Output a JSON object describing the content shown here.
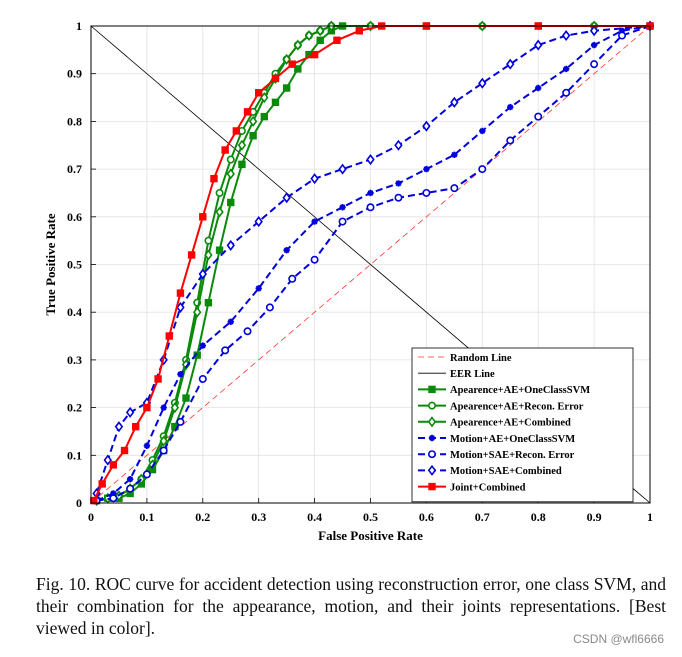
{
  "chart_data": {
    "type": "line",
    "title": "",
    "xlabel": "False Positive Rate",
    "ylabel": "True Positive Rate",
    "xlim": [
      0,
      1
    ],
    "ylim": [
      0,
      1
    ],
    "grid": true,
    "legend_position": "bottom-right",
    "x_ticks": [
      {
        "value": 0,
        "label": "0"
      },
      {
        "value": 0.1,
        "label": "0.1"
      },
      {
        "value": 0.2,
        "label": "0.2"
      },
      {
        "value": 0.3,
        "label": "0.3"
      },
      {
        "value": 0.4,
        "label": "0.4"
      },
      {
        "value": 0.5,
        "label": "0.5"
      },
      {
        "value": 0.6,
        "label": "0.6"
      },
      {
        "value": 0.7,
        "label": "0.7"
      },
      {
        "value": 0.8,
        "label": "0.8"
      },
      {
        "value": 0.9,
        "label": "0.9"
      },
      {
        "value": 1,
        "label": "1"
      }
    ],
    "y_ticks": [
      {
        "value": 0,
        "label": "0"
      },
      {
        "value": 0.1,
        "label": "0.1"
      },
      {
        "value": 0.2,
        "label": "0.2"
      },
      {
        "value": 0.3,
        "label": "0.3"
      },
      {
        "value": 0.4,
        "label": "0.4"
      },
      {
        "value": 0.5,
        "label": "0.5"
      },
      {
        "value": 0.6,
        "label": "0.6"
      },
      {
        "value": 0.7,
        "label": "0.7"
      },
      {
        "value": 0.8,
        "label": "0.8"
      },
      {
        "value": 0.9,
        "label": "0.9"
      },
      {
        "value": 1,
        "label": "1"
      }
    ],
    "series": [
      {
        "name": "Random Line",
        "color": "#ff3333",
        "dash": "6,4",
        "marker": "none",
        "width": 0.8,
        "points": [
          [
            0,
            0
          ],
          [
            1,
            1
          ]
        ]
      },
      {
        "name": "EER Line",
        "color": "#000000",
        "dash": "",
        "marker": "none",
        "width": 0.8,
        "points": [
          [
            0,
            1
          ],
          [
            1,
            0
          ]
        ]
      },
      {
        "name": "Apearence+AE+OneClassSVM",
        "color": "#0a8a0a",
        "dash": "",
        "marker": "square",
        "width": 2,
        "points": [
          [
            0.01,
            0.005
          ],
          [
            0.03,
            0.01
          ],
          [
            0.05,
            0.01
          ],
          [
            0.07,
            0.02
          ],
          [
            0.09,
            0.04
          ],
          [
            0.11,
            0.07
          ],
          [
            0.13,
            0.11
          ],
          [
            0.15,
            0.16
          ],
          [
            0.17,
            0.22
          ],
          [
            0.19,
            0.31
          ],
          [
            0.21,
            0.42
          ],
          [
            0.23,
            0.53
          ],
          [
            0.25,
            0.63
          ],
          [
            0.27,
            0.71
          ],
          [
            0.29,
            0.77
          ],
          [
            0.31,
            0.81
          ],
          [
            0.33,
            0.84
          ],
          [
            0.35,
            0.87
          ],
          [
            0.37,
            0.91
          ],
          [
            0.39,
            0.94
          ],
          [
            0.41,
            0.97
          ],
          [
            0.43,
            0.99
          ],
          [
            0.45,
            1
          ],
          [
            0.5,
            1
          ],
          [
            0.6,
            1
          ],
          [
            0.7,
            1
          ],
          [
            0.8,
            1
          ],
          [
            0.9,
            1
          ],
          [
            1,
            1
          ]
        ]
      },
      {
        "name": "Apearence+AE+Recon. Error",
        "color": "#0a8a0a",
        "dash": "",
        "marker": "circle",
        "width": 2,
        "points": [
          [
            0.01,
            0.005
          ],
          [
            0.03,
            0.01
          ],
          [
            0.05,
            0.015
          ],
          [
            0.07,
            0.03
          ],
          [
            0.09,
            0.05
          ],
          [
            0.11,
            0.09
          ],
          [
            0.13,
            0.14
          ],
          [
            0.15,
            0.21
          ],
          [
            0.17,
            0.3
          ],
          [
            0.19,
            0.42
          ],
          [
            0.21,
            0.55
          ],
          [
            0.23,
            0.65
          ],
          [
            0.25,
            0.72
          ],
          [
            0.27,
            0.78
          ],
          [
            0.29,
            0.82
          ],
          [
            0.31,
            0.86
          ],
          [
            0.33,
            0.9
          ],
          [
            0.35,
            0.93
          ],
          [
            0.37,
            0.96
          ],
          [
            0.39,
            0.98
          ],
          [
            0.41,
            0.99
          ],
          [
            0.43,
            1
          ],
          [
            0.5,
            1
          ],
          [
            0.6,
            1
          ],
          [
            0.7,
            1
          ],
          [
            0.8,
            1
          ],
          [
            0.9,
            1
          ],
          [
            1,
            1
          ]
        ]
      },
      {
        "name": "Apearence+AE+Combined",
        "color": "#0a8a0a",
        "dash": "",
        "marker": "diamond",
        "width": 2,
        "points": [
          [
            0.01,
            0.005
          ],
          [
            0.03,
            0.01
          ],
          [
            0.05,
            0.015
          ],
          [
            0.07,
            0.03
          ],
          [
            0.09,
            0.05
          ],
          [
            0.11,
            0.08
          ],
          [
            0.13,
            0.13
          ],
          [
            0.15,
            0.2
          ],
          [
            0.17,
            0.29
          ],
          [
            0.19,
            0.4
          ],
          [
            0.21,
            0.52
          ],
          [
            0.23,
            0.61
          ],
          [
            0.25,
            0.69
          ],
          [
            0.27,
            0.75
          ],
          [
            0.29,
            0.8
          ],
          [
            0.31,
            0.85
          ],
          [
            0.33,
            0.89
          ],
          [
            0.35,
            0.93
          ],
          [
            0.37,
            0.96
          ],
          [
            0.39,
            0.98
          ],
          [
            0.41,
            0.99
          ],
          [
            0.43,
            1
          ],
          [
            0.5,
            1
          ],
          [
            0.6,
            1
          ],
          [
            0.7,
            1
          ],
          [
            0.8,
            1
          ],
          [
            0.9,
            1
          ],
          [
            1,
            1
          ]
        ]
      },
      {
        "name": "Motion+AE+OneClassSVM",
        "color": "#0000dd",
        "dash": "7,4",
        "marker": "star",
        "width": 2,
        "points": [
          [
            0.01,
            0.005
          ],
          [
            0.04,
            0.02
          ],
          [
            0.07,
            0.05
          ],
          [
            0.1,
            0.12
          ],
          [
            0.13,
            0.2
          ],
          [
            0.16,
            0.27
          ],
          [
            0.2,
            0.33
          ],
          [
            0.25,
            0.38
          ],
          [
            0.3,
            0.45
          ],
          [
            0.35,
            0.53
          ],
          [
            0.4,
            0.59
          ],
          [
            0.45,
            0.62
          ],
          [
            0.5,
            0.65
          ],
          [
            0.55,
            0.67
          ],
          [
            0.6,
            0.7
          ],
          [
            0.65,
            0.73
          ],
          [
            0.7,
            0.78
          ],
          [
            0.75,
            0.83
          ],
          [
            0.8,
            0.87
          ],
          [
            0.85,
            0.91
          ],
          [
            0.9,
            0.96
          ],
          [
            0.95,
            0.99
          ],
          [
            1,
            1
          ]
        ]
      },
      {
        "name": "Motion+SAE+Recon. Error",
        "color": "#0000dd",
        "dash": "7,4",
        "marker": "circle",
        "width": 2,
        "points": [
          [
            0.01,
            0.005
          ],
          [
            0.04,
            0.01
          ],
          [
            0.07,
            0.03
          ],
          [
            0.1,
            0.06
          ],
          [
            0.13,
            0.11
          ],
          [
            0.16,
            0.17
          ],
          [
            0.2,
            0.26
          ],
          [
            0.24,
            0.32
          ],
          [
            0.28,
            0.36
          ],
          [
            0.32,
            0.41
          ],
          [
            0.36,
            0.47
          ],
          [
            0.4,
            0.51
          ],
          [
            0.45,
            0.59
          ],
          [
            0.5,
            0.62
          ],
          [
            0.55,
            0.64
          ],
          [
            0.6,
            0.65
          ],
          [
            0.65,
            0.66
          ],
          [
            0.7,
            0.7
          ],
          [
            0.75,
            0.76
          ],
          [
            0.8,
            0.81
          ],
          [
            0.85,
            0.86
          ],
          [
            0.9,
            0.92
          ],
          [
            0.95,
            0.98
          ],
          [
            1,
            1
          ]
        ]
      },
      {
        "name": "Motion+SAE+Combined",
        "color": "#0000dd",
        "dash": "7,4",
        "marker": "diamond",
        "width": 2,
        "points": [
          [
            0.01,
            0.02
          ],
          [
            0.03,
            0.09
          ],
          [
            0.05,
            0.16
          ],
          [
            0.07,
            0.19
          ],
          [
            0.1,
            0.21
          ],
          [
            0.13,
            0.3
          ],
          [
            0.16,
            0.41
          ],
          [
            0.2,
            0.48
          ],
          [
            0.25,
            0.54
          ],
          [
            0.3,
            0.59
          ],
          [
            0.35,
            0.64
          ],
          [
            0.4,
            0.68
          ],
          [
            0.45,
            0.7
          ],
          [
            0.5,
            0.72
          ],
          [
            0.55,
            0.75
          ],
          [
            0.6,
            0.79
          ],
          [
            0.65,
            0.84
          ],
          [
            0.7,
            0.88
          ],
          [
            0.75,
            0.92
          ],
          [
            0.8,
            0.96
          ],
          [
            0.85,
            0.98
          ],
          [
            0.9,
            0.99
          ],
          [
            1,
            1
          ]
        ]
      },
      {
        "name": "Joint+Combined",
        "color": "#ff0000",
        "dash": "",
        "marker": "square",
        "width": 2,
        "points": [
          [
            0.005,
            0.005
          ],
          [
            0.02,
            0.04
          ],
          [
            0.04,
            0.08
          ],
          [
            0.06,
            0.11
          ],
          [
            0.08,
            0.16
          ],
          [
            0.1,
            0.2
          ],
          [
            0.12,
            0.26
          ],
          [
            0.14,
            0.35
          ],
          [
            0.16,
            0.44
          ],
          [
            0.18,
            0.52
          ],
          [
            0.2,
            0.6
          ],
          [
            0.22,
            0.68
          ],
          [
            0.24,
            0.74
          ],
          [
            0.26,
            0.78
          ],
          [
            0.28,
            0.82
          ],
          [
            0.3,
            0.86
          ],
          [
            0.33,
            0.89
          ],
          [
            0.36,
            0.92
          ],
          [
            0.4,
            0.94
          ],
          [
            0.44,
            0.97
          ],
          [
            0.48,
            0.99
          ],
          [
            0.52,
            1
          ],
          [
            0.6,
            1
          ],
          [
            0.7,
            1
          ],
          [
            0.8,
            1
          ],
          [
            0.9,
            1
          ],
          [
            1,
            1
          ]
        ]
      }
    ]
  },
  "caption": "Fig. 10.   ROC curve for accident detection using reconstruction error, one class SVM, and their combination for the appearance, motion, and their joints representations. [Best viewed in color].",
  "watermark": "CSDN @wfl6666"
}
